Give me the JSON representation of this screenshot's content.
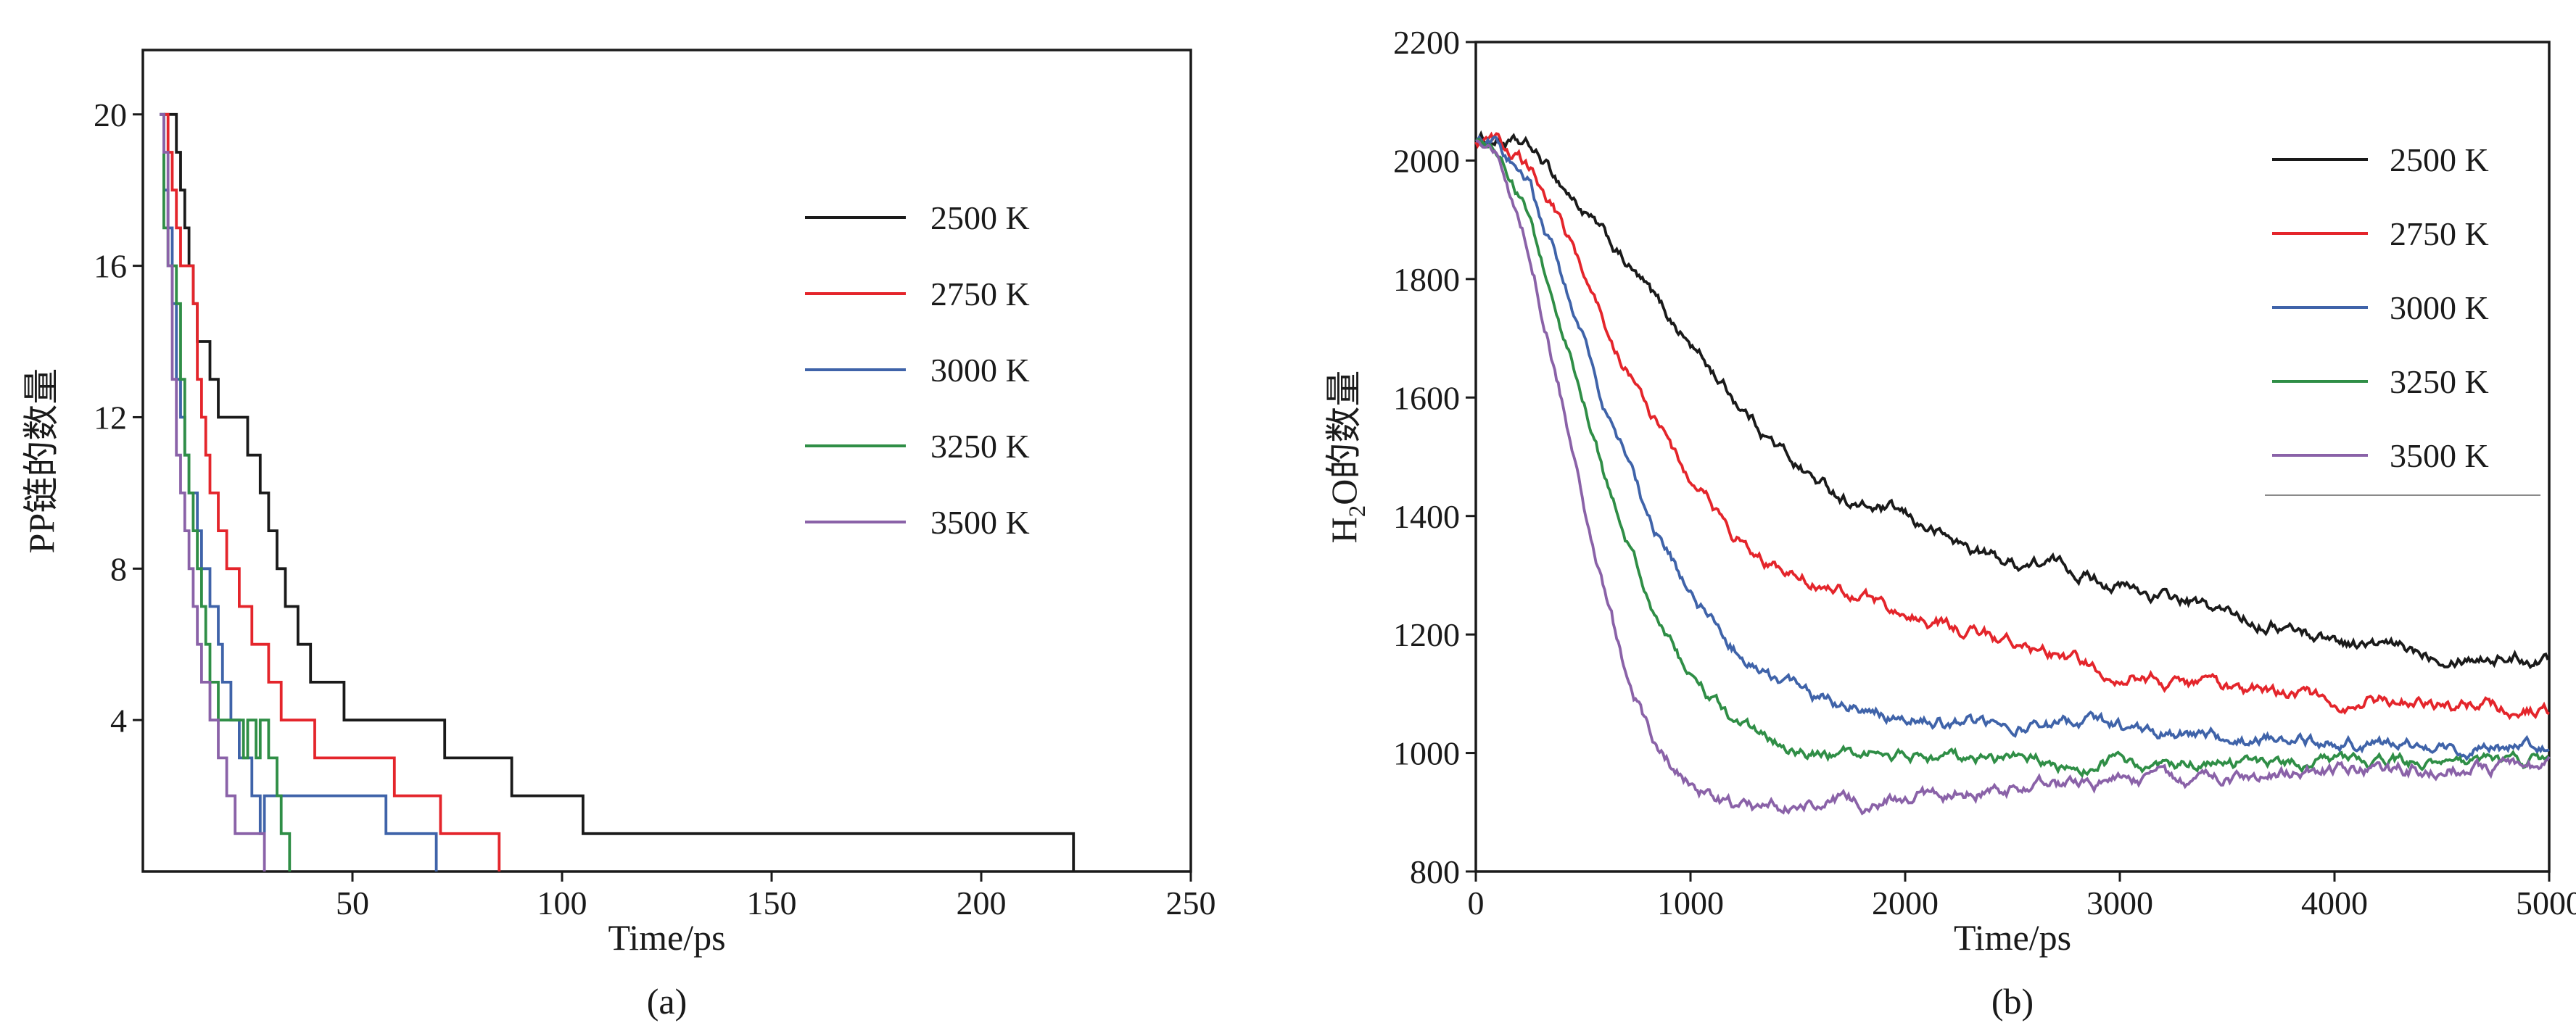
{
  "figure": {
    "background": "#ffffff",
    "ink_color": "#1a1a1a"
  },
  "chart_data": [
    {
      "id": "a",
      "type": "line",
      "style": "steps",
      "title": "",
      "panel_label": "(a)",
      "xlabel": "Time/ps",
      "ylabel": "PP链的数量",
      "xlim": [
        0,
        250
      ],
      "ylim": [
        0,
        21.7
      ],
      "xticks": [
        50,
        100,
        150,
        200,
        250
      ],
      "yticks": [
        4,
        8,
        12,
        16,
        20
      ],
      "grid": false,
      "legend": {
        "position": "upper-right-inside",
        "underline": false
      },
      "series": [
        {
          "name": "2500 K",
          "color": "#1a1a1a",
          "steps": [
            [
              5,
              20
            ],
            [
              8,
              19
            ],
            [
              9,
              18
            ],
            [
              10,
              17
            ],
            [
              11,
              16
            ],
            [
              12,
              15
            ],
            [
              13,
              14
            ],
            [
              16,
              13
            ],
            [
              18,
              12
            ],
            [
              25,
              11
            ],
            [
              28,
              10
            ],
            [
              30,
              9
            ],
            [
              32,
              8
            ],
            [
              34,
              7
            ],
            [
              37,
              6
            ],
            [
              40,
              5
            ],
            [
              48,
              4
            ],
            [
              72,
              3
            ],
            [
              88,
              2
            ],
            [
              105,
              1
            ],
            [
              222,
              0
            ]
          ]
        },
        {
          "name": "2750 K",
          "color": "#e4252b",
          "steps": [
            [
              5,
              20
            ],
            [
              6,
              19
            ],
            [
              7,
              18
            ],
            [
              8,
              17
            ],
            [
              9,
              16
            ],
            [
              12,
              15
            ],
            [
              13,
              13
            ],
            [
              14,
              12
            ],
            [
              15,
              11
            ],
            [
              16,
              10
            ],
            [
              18,
              9
            ],
            [
              20,
              8
            ],
            [
              23,
              7
            ],
            [
              26,
              6
            ],
            [
              30,
              5
            ],
            [
              33,
              4
            ],
            [
              41,
              3
            ],
            [
              60,
              2
            ],
            [
              71,
              1
            ],
            [
              85,
              0
            ]
          ]
        },
        {
          "name": "3000 K",
          "color": "#3f63a9",
          "steps": [
            [
              4,
              20
            ],
            [
              5,
              18
            ],
            [
              6,
              17
            ],
            [
              7,
              15
            ],
            [
              8,
              13
            ],
            [
              9,
              12
            ],
            [
              10,
              11
            ],
            [
              11,
              10
            ],
            [
              13,
              9
            ],
            [
              14,
              8
            ],
            [
              16,
              7
            ],
            [
              18,
              6
            ],
            [
              19,
              5
            ],
            [
              21,
              4
            ],
            [
              23,
              3
            ],
            [
              26,
              2
            ],
            [
              28,
              1
            ],
            [
              29,
              2
            ],
            [
              58,
              1
            ],
            [
              70,
              0
            ]
          ]
        },
        {
          "name": "3250 K",
          "color": "#2f8e46",
          "steps": [
            [
              4,
              20
            ],
            [
              5,
              17
            ],
            [
              6,
              16
            ],
            [
              8,
              15
            ],
            [
              9,
              13
            ],
            [
              10,
              11
            ],
            [
              11,
              10
            ],
            [
              12,
              9
            ],
            [
              13,
              8
            ],
            [
              14,
              7
            ],
            [
              15,
              6
            ],
            [
              16,
              5
            ],
            [
              18,
              4
            ],
            [
              24,
              3
            ],
            [
              25,
              4
            ],
            [
              27,
              3
            ],
            [
              28,
              4
            ],
            [
              30,
              3
            ],
            [
              32,
              2
            ],
            [
              33,
              1
            ],
            [
              35,
              0
            ]
          ]
        },
        {
          "name": "3500 K",
          "color": "#8a62a8",
          "steps": [
            [
              4,
              20
            ],
            [
              5,
              19
            ],
            [
              6,
              16
            ],
            [
              7,
              13
            ],
            [
              8,
              11
            ],
            [
              9,
              10
            ],
            [
              10,
              9
            ],
            [
              11,
              8
            ],
            [
              12,
              7
            ],
            [
              13,
              6
            ],
            [
              14,
              5
            ],
            [
              16,
              4
            ],
            [
              18,
              3
            ],
            [
              20,
              2
            ],
            [
              22,
              1
            ],
            [
              29,
              0
            ]
          ]
        }
      ]
    },
    {
      "id": "b",
      "type": "line",
      "style": "noisy",
      "title": "",
      "panel_label": "(b)",
      "xlabel": "Time/ps",
      "ylabel": "H2O的数量",
      "ylabel_parts": [
        {
          "text": "H"
        },
        {
          "text": "2",
          "sub": true
        },
        {
          "text": "O的数量"
        }
      ],
      "xlim": [
        0,
        5000
      ],
      "ylim": [
        800,
        2200
      ],
      "xticks": [
        0,
        1000,
        2000,
        3000,
        4000,
        5000
      ],
      "yticks": [
        800,
        1000,
        1200,
        1400,
        1600,
        1800,
        2000,
        2200
      ],
      "grid": false,
      "legend": {
        "position": "upper-right-inside",
        "underline": true
      },
      "series": [
        {
          "name": "2500 K",
          "color": "#1a1a1a",
          "noise": 16,
          "points": [
            [
              0,
              2035
            ],
            [
              100,
              2035
            ],
            [
              250,
              2020
            ],
            [
              400,
              1960
            ],
            [
              600,
              1870
            ],
            [
              800,
              1780
            ],
            [
              1000,
              1690
            ],
            [
              1200,
              1600
            ],
            [
              1400,
              1520
            ],
            [
              1600,
              1455
            ],
            [
              1800,
              1415
            ],
            [
              1950,
              1405
            ],
            [
              2100,
              1380
            ],
            [
              2300,
              1345
            ],
            [
              2500,
              1320
            ],
            [
              2700,
              1320
            ],
            [
              2900,
              1295
            ],
            [
              3100,
              1270
            ],
            [
              3300,
              1255
            ],
            [
              3500,
              1235
            ],
            [
              3700,
              1220
            ],
            [
              3900,
              1200
            ],
            [
              4100,
              1185
            ],
            [
              4300,
              1175
            ],
            [
              4500,
              1170
            ],
            [
              4700,
              1165
            ],
            [
              5000,
              1160
            ]
          ]
        },
        {
          "name": "2750 K",
          "color": "#e4252b",
          "noise": 16,
          "points": [
            [
              0,
              2035
            ],
            [
              100,
              2030
            ],
            [
              250,
              1990
            ],
            [
              400,
              1890
            ],
            [
              600,
              1730
            ],
            [
              800,
              1580
            ],
            [
              1000,
              1460
            ],
            [
              1200,
              1370
            ],
            [
              1400,
              1310
            ],
            [
              1600,
              1285
            ],
            [
              1800,
              1260
            ],
            [
              2000,
              1235
            ],
            [
              2200,
              1215
            ],
            [
              2400,
              1195
            ],
            [
              2600,
              1175
            ],
            [
              2800,
              1155
            ],
            [
              3000,
              1135
            ],
            [
              3200,
              1125
            ],
            [
              3400,
              1115
            ],
            [
              3600,
              1105
            ],
            [
              3800,
              1098
            ],
            [
              4000,
              1092
            ],
            [
              4200,
              1088
            ],
            [
              4400,
              1082
            ],
            [
              4600,
              1078
            ],
            [
              4800,
              1076
            ],
            [
              5000,
              1072
            ]
          ]
        },
        {
          "name": "3000 K",
          "color": "#3f63a9",
          "noise": 16,
          "points": [
            [
              0,
              2035
            ],
            [
              100,
              2025
            ],
            [
              250,
              1960
            ],
            [
              400,
              1810
            ],
            [
              600,
              1590
            ],
            [
              800,
              1400
            ],
            [
              1000,
              1265
            ],
            [
              1200,
              1180
            ],
            [
              1400,
              1125
            ],
            [
              1600,
              1095
            ],
            [
              1800,
              1075
            ],
            [
              2000,
              1062
            ],
            [
              2200,
              1052
            ],
            [
              2400,
              1050
            ],
            [
              2600,
              1042
            ],
            [
              2800,
              1050
            ],
            [
              3000,
              1040
            ],
            [
              3200,
              1032
            ],
            [
              3400,
              1030
            ],
            [
              3600,
              1022
            ],
            [
              3800,
              1020
            ],
            [
              4000,
              1016
            ],
            [
              4200,
              1012
            ],
            [
              4400,
              1012
            ],
            [
              4600,
              1010
            ],
            [
              4800,
              1006
            ],
            [
              5000,
              1012
            ]
          ]
        },
        {
          "name": "3250 K",
          "color": "#2f8e46",
          "noise": 15,
          "points": [
            [
              0,
              2035
            ],
            [
              100,
              2015
            ],
            [
              250,
              1910
            ],
            [
              400,
              1720
            ],
            [
              600,
              1470
            ],
            [
              800,
              1260
            ],
            [
              1000,
              1125
            ],
            [
              1200,
              1055
            ],
            [
              1400,
              1015
            ],
            [
              1600,
              1000
            ],
            [
              1800,
              992
            ],
            [
              2000,
              1000
            ],
            [
              2200,
              990
            ],
            [
              2400,
              986
            ],
            [
              2600,
              985
            ],
            [
              2800,
              980
            ],
            [
              3000,
              986
            ],
            [
              3200,
              980
            ],
            [
              3400,
              985
            ],
            [
              3600,
              982
            ],
            [
              3800,
              985
            ],
            [
              4000,
              984
            ],
            [
              4200,
              980
            ],
            [
              4400,
              984
            ],
            [
              4600,
              982
            ],
            [
              4800,
              985
            ],
            [
              5000,
              985
            ]
          ]
        },
        {
          "name": "3500 K",
          "color": "#8a62a8",
          "noise": 17,
          "points": [
            [
              0,
              2035
            ],
            [
              100,
              2000
            ],
            [
              250,
              1850
            ],
            [
              400,
              1600
            ],
            [
              550,
              1350
            ],
            [
              700,
              1130
            ],
            [
              850,
              1000
            ],
            [
              1000,
              945
            ],
            [
              1150,
              915
            ],
            [
              1300,
              905
            ],
            [
              1500,
              908
            ],
            [
              1700,
              918
            ],
            [
              1900,
              915
            ],
            [
              2100,
              925
            ],
            [
              2300,
              932
            ],
            [
              2500,
              938
            ],
            [
              2700,
              944
            ],
            [
              2900,
              948
            ],
            [
              3100,
              950
            ],
            [
              3300,
              954
            ],
            [
              3500,
              958
            ],
            [
              3700,
              962
            ],
            [
              3900,
              966
            ],
            [
              4100,
              968
            ],
            [
              4300,
              972
            ],
            [
              4500,
              974
            ],
            [
              4700,
              976
            ],
            [
              5000,
              978
            ]
          ]
        }
      ]
    }
  ]
}
